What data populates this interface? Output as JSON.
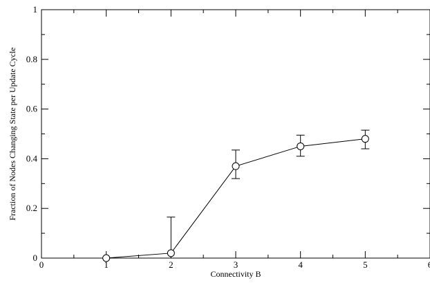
{
  "chart_data": {
    "type": "line",
    "title": "",
    "xlabel": "Connectivity B",
    "ylabel": "Fraction of Nodes Changing State per Update Cycle",
    "xlim": [
      0,
      6
    ],
    "ylim": [
      0,
      1
    ],
    "grid": false,
    "x_major_ticks": [
      0,
      1,
      2,
      3,
      4,
      5,
      6
    ],
    "x_minor_ticks": [
      0.5,
      1.5,
      2.5,
      3.5,
      4.5,
      5.5
    ],
    "x_tick_labels": [
      "0",
      "1",
      "2",
      "3",
      "4",
      "5",
      "6"
    ],
    "y_major_ticks": [
      0,
      0.2,
      0.4,
      0.6,
      0.8,
      1
    ],
    "y_minor_ticks": [
      0.1,
      0.3,
      0.5,
      0.7,
      0.9
    ],
    "y_tick_labels": [
      "0",
      "0.2",
      "0.4",
      "0.6",
      "0.8",
      "1"
    ],
    "series": [
      {
        "marker": "open-circle",
        "color": "#000000",
        "points": [
          {
            "x": 1,
            "y": 0.0,
            "err_low": 0.0,
            "err_high": 0.0
          },
          {
            "x": 2,
            "y": 0.02,
            "err_low": 0.0,
            "err_high": 0.165
          },
          {
            "x": 3,
            "y": 0.37,
            "err_low": 0.32,
            "err_high": 0.435
          },
          {
            "x": 4,
            "y": 0.45,
            "err_low": 0.41,
            "err_high": 0.495
          },
          {
            "x": 5,
            "y": 0.48,
            "err_low": 0.44,
            "err_high": 0.515
          }
        ]
      }
    ]
  }
}
